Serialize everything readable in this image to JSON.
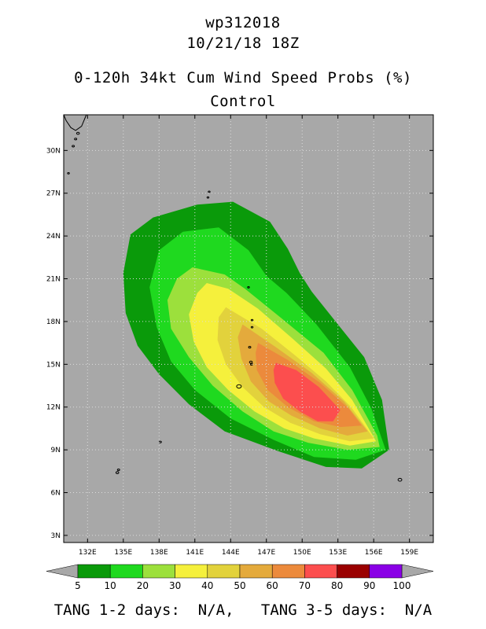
{
  "title": {
    "storm_id": "wp312018",
    "datetime": "10/21/18 18Z",
    "product": "0-120h 34kt Cum Wind Speed Probs (%)",
    "run": "Control"
  },
  "map": {
    "background_color": "#a8a8a8",
    "lon_range": [
      130,
      161
    ],
    "lat_range": [
      2.5,
      32.5
    ],
    "lon_ticks": [
      {
        "value": 132,
        "label": "132E"
      },
      {
        "value": 135,
        "label": "135E"
      },
      {
        "value": 138,
        "label": "138E"
      },
      {
        "value": 141,
        "label": "141E"
      },
      {
        "value": 144,
        "label": "144E"
      },
      {
        "value": 147,
        "label": "147E"
      },
      {
        "value": 150,
        "label": "150E"
      },
      {
        "value": 153,
        "label": "153E"
      },
      {
        "value": 156,
        "label": "156E"
      },
      {
        "value": 159,
        "label": "159E"
      }
    ],
    "lat_ticks": [
      {
        "value": 3,
        "label": "3N"
      },
      {
        "value": 6,
        "label": "6N"
      },
      {
        "value": 9,
        "label": "9N"
      },
      {
        "value": 12,
        "label": "12N"
      },
      {
        "value": 15,
        "label": "15N"
      },
      {
        "value": 18,
        "label": "18N"
      },
      {
        "value": 21,
        "label": "21N"
      },
      {
        "value": 24,
        "label": "24N"
      },
      {
        "value": 27,
        "label": "27N"
      },
      {
        "value": 30,
        "label": "30N"
      }
    ],
    "gridlines": "dotted"
  },
  "probability_bands": [
    {
      "min": 5,
      "max": 10,
      "color": "#0a9a0a"
    },
    {
      "min": 10,
      "max": 20,
      "color": "#1fd91f"
    },
    {
      "min": 20,
      "max": 30,
      "color": "#9ce03c"
    },
    {
      "min": 30,
      "max": 40,
      "color": "#f5f03c"
    },
    {
      "min": 40,
      "max": 50,
      "color": "#e2d23c"
    },
    {
      "min": 50,
      "max": 60,
      "color": "#e4aa3c"
    },
    {
      "min": 60,
      "max": 70,
      "color": "#ec8a3c"
    },
    {
      "min": 70,
      "max": 80,
      "color": "#fc4e4e"
    },
    {
      "min": 80,
      "max": 90,
      "color": "#9a0000"
    },
    {
      "min": 90,
      "max": 100,
      "color": "#8a00e6"
    }
  ],
  "colorbar_labels": [
    "5",
    "10",
    "20",
    "30",
    "40",
    "50",
    "60",
    "70",
    "80",
    "90",
    "100"
  ],
  "footer": {
    "tang_12_label": "TANG 1-2 days:",
    "tang_12_value": "N/A,",
    "tang_35_label": "TANG 3-5 days:",
    "tang_35_value": "N/A"
  }
}
